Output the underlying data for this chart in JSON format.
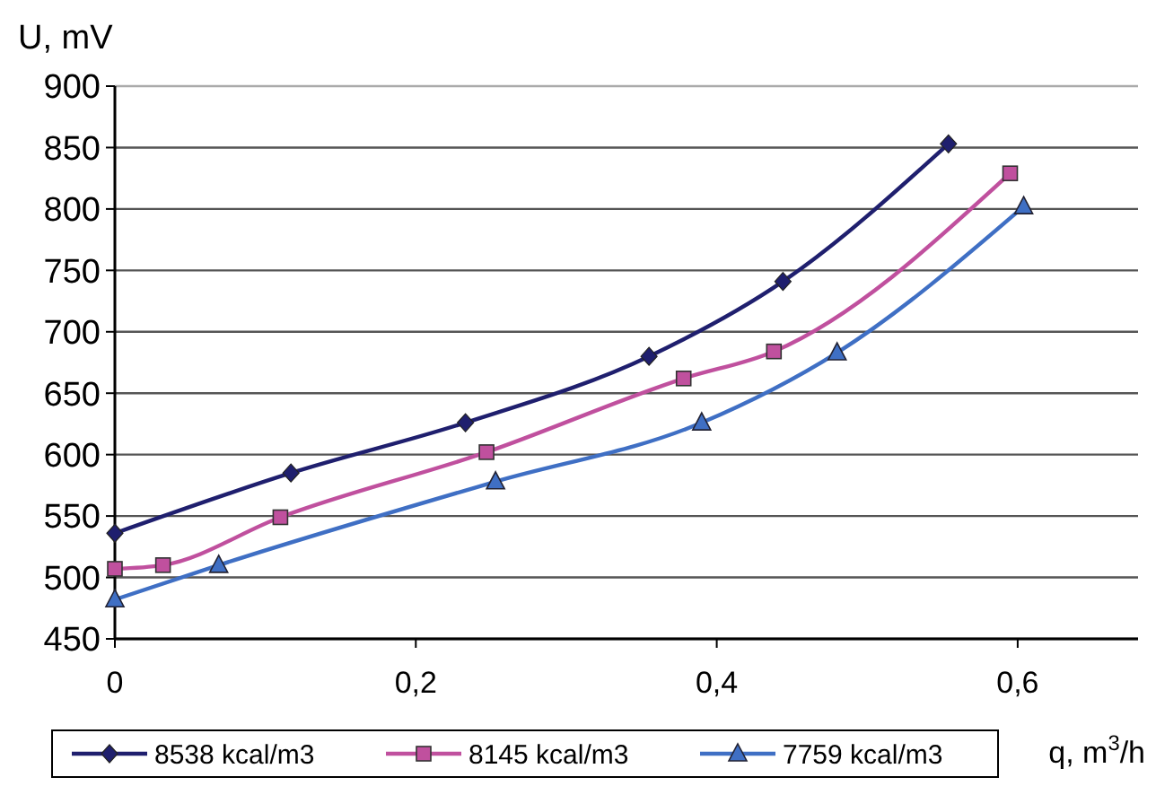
{
  "chart_data": {
    "type": "line",
    "xlabel": "q, m$^{3}$/h",
    "ylabel": "U, mV",
    "xlim": [
      0,
      0.68
    ],
    "ylim": [
      450,
      900
    ],
    "xticks": [
      {
        "value": 0,
        "label": "0"
      },
      {
        "value": 0.2,
        "label": "0,2"
      },
      {
        "value": 0.4,
        "label": "0,4"
      },
      {
        "value": 0.6,
        "label": "0,6"
      }
    ],
    "yticks": [
      450,
      500,
      550,
      600,
      650,
      700,
      750,
      800,
      850,
      900
    ],
    "grid": "y",
    "legend": "bottom",
    "series": [
      {
        "name": "8538 kcal/m3",
        "color": "#1f1f6e",
        "marker": "diamond",
        "x": [
          0,
          0.117,
          0.233,
          0.355,
          0.444,
          0.554
        ],
        "values": [
          536,
          585,
          626,
          680,
          741,
          853
        ]
      },
      {
        "name": "8145 kcal/m3",
        "color": "#c0509e",
        "marker": "square",
        "x": [
          0,
          0.032,
          0.11,
          0.247,
          0.378,
          0.438,
          0.595
        ],
        "values": [
          507,
          510,
          549,
          602,
          662,
          684,
          829
        ]
      },
      {
        "name": "7759 kcal/m3",
        "color": "#3f6fc4",
        "marker": "triangle",
        "x": [
          0,
          0.069,
          0.253,
          0.39,
          0.48,
          0.604
        ],
        "values": [
          482,
          510,
          578,
          626,
          683,
          802
        ]
      }
    ]
  }
}
